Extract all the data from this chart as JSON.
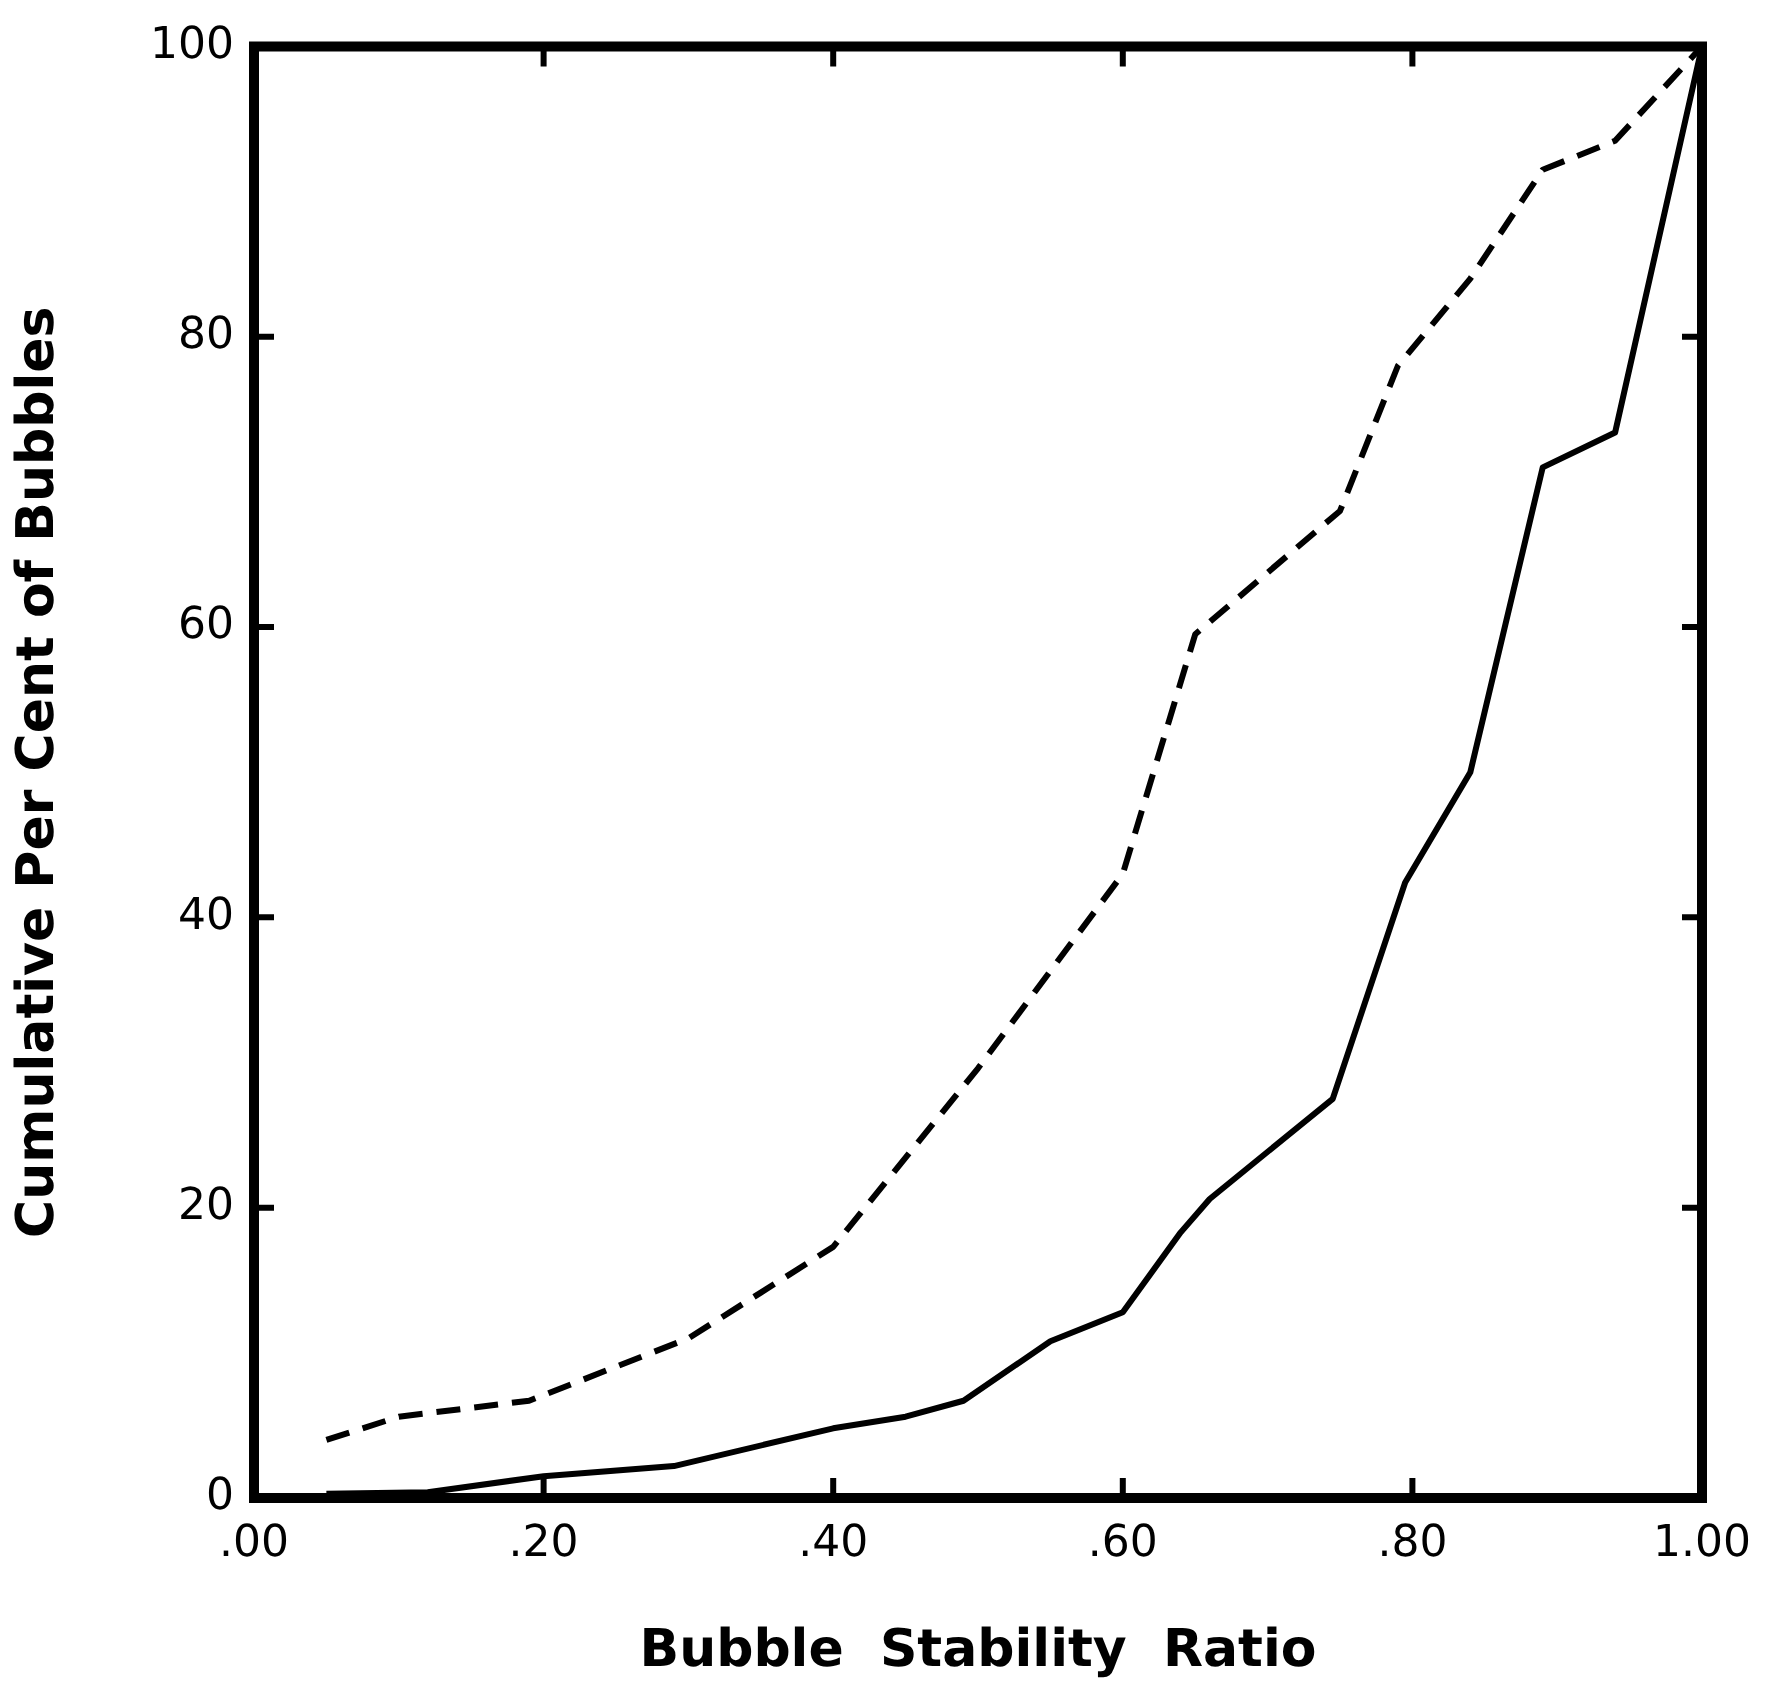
{
  "chart_data": {
    "type": "line",
    "xlabel": "Bubble  Stability  Ratio",
    "ylabel": "Cumulative Per Cent of Bubbles",
    "xlim": [
      0,
      1
    ],
    "ylim": [
      0,
      100
    ],
    "xticks": [
      {
        "value": 0,
        "label": ".00"
      },
      {
        "value": 0.2,
        "label": ".20"
      },
      {
        "value": 0.4,
        "label": ".40"
      },
      {
        "value": 0.6,
        "label": ".60"
      },
      {
        "value": 0.8,
        "label": ".80"
      },
      {
        "value": 1,
        "label": "1.00"
      }
    ],
    "yticks": [
      0,
      20,
      40,
      60,
      80,
      100
    ],
    "grid": false,
    "legend": false,
    "marker": "none",
    "series": [
      {
        "color": "#000000",
        "line_style": "dashed",
        "x": [
          0.05,
          0.1,
          0.19,
          0.3,
          0.4,
          0.5,
          0.6,
          0.65,
          0.75,
          0.79,
          0.84,
          0.89,
          0.94,
          1.0
        ],
        "values": [
          4,
          5.6,
          6.7,
          11,
          17.3,
          29.6,
          43,
          59.5,
          68,
          78,
          84,
          91.5,
          93.5,
          100
        ]
      },
      {
        "color": "#000000",
        "line_style": "solid",
        "x": [
          0.05,
          0.12,
          0.2,
          0.29,
          0.4,
          0.45,
          0.49,
          0.55,
          0.6,
          0.64,
          0.66,
          0.745,
          0.795,
          0.84,
          0.89,
          0.94,
          1.0
        ],
        "values": [
          0.3,
          0.4,
          1.5,
          2.2,
          4.8,
          5.6,
          6.7,
          10.8,
          12.8,
          18.3,
          20.6,
          27.5,
          42.4,
          50,
          71,
          73.4,
          100
        ]
      }
    ]
  }
}
